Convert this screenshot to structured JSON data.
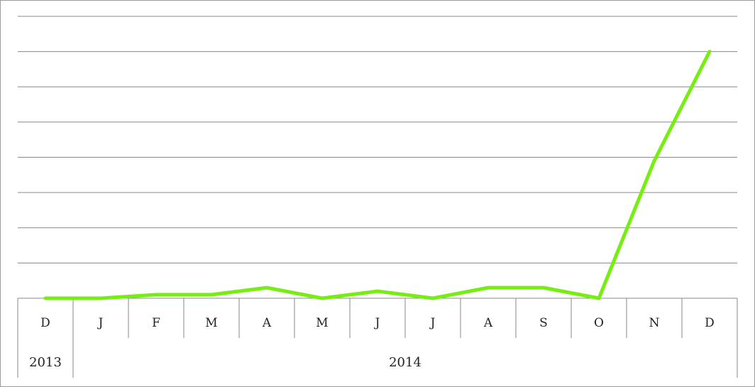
{
  "chart_data": {
    "type": "line",
    "title": "",
    "xlabel": "",
    "ylabel": "",
    "categories": [
      "D",
      "J",
      "F",
      "M",
      "A",
      "M",
      "J",
      "J",
      "A",
      "S",
      "O",
      "N",
      "D"
    ],
    "year_groups": [
      {
        "label": "2013",
        "span": 1
      },
      {
        "label": "2014",
        "span": 12
      }
    ],
    "series": [
      {
        "values": [
          0,
          0,
          0.1,
          0.1,
          0.3,
          0,
          0.2,
          0,
          0.3,
          0.3,
          0,
          3.9,
          7.0
        ]
      }
    ],
    "ylim": [
      0,
      8
    ],
    "y_gridlines": 8,
    "y_tick_labels": false,
    "grid": true,
    "legend": "none",
    "colors": {
      "line": "#77ee11",
      "grid": "#888888",
      "axis": "#888888"
    }
  }
}
